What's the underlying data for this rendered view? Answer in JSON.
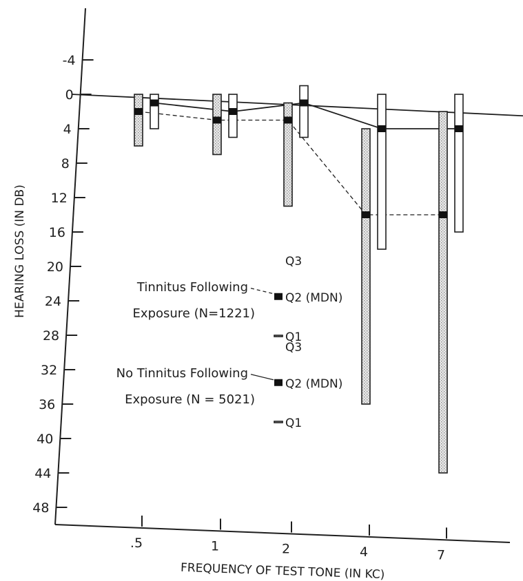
{
  "chart_data": {
    "type": "box",
    "title": "",
    "xlabel": "FREQUENCY OF TEST TONE (IN KC)",
    "ylabel": "HEARING LOSS (IN DB)",
    "y_ticks": [
      "-4",
      "0",
      "4",
      "8",
      "12",
      "16",
      "20",
      "24",
      "28",
      "32",
      "36",
      "40",
      "44",
      "48"
    ],
    "x_ticks": [
      ".5",
      "1",
      "2",
      "4",
      "7"
    ],
    "ylim": [
      -4,
      50
    ],
    "y_inverted": true,
    "grid": false,
    "series": [
      {
        "name": "Tinnitus Following Exposure (N=1221)",
        "style": "shaded",
        "points": [
          {
            "x": ".5",
            "q1": 0,
            "median": 2,
            "q3": 6
          },
          {
            "x": "1",
            "q1": 0,
            "median": 3,
            "q3": 7
          },
          {
            "x": "2",
            "q1": 1,
            "median": 3,
            "q3": 13
          },
          {
            "x": "4",
            "q1": 4,
            "median": 14,
            "q3": 36
          },
          {
            "x": "7",
            "q1": 2,
            "median": 14,
            "q3": 44
          }
        ]
      },
      {
        "name": "No Tinnitus Following Exposure (N=5021)",
        "style": "open",
        "points": [
          {
            "x": ".5",
            "q1": 0,
            "median": 1,
            "q3": 4
          },
          {
            "x": "1",
            "q1": 0,
            "median": 2,
            "q3": 5
          },
          {
            "x": "2",
            "q1": -1,
            "median": 1,
            "q3": 5
          },
          {
            "x": "4",
            "q1": 0,
            "median": 4,
            "q3": 18
          },
          {
            "x": "7",
            "q1": 0,
            "median": 4,
            "q3": 16
          }
        ]
      }
    ],
    "reference_line": {
      "from": 0,
      "to": 2.5
    },
    "legend": {
      "entries": [
        {
          "line1": "Tinnitus Following",
          "line2": "Exposure (N=1221)",
          "style": "shaded"
        },
        {
          "line1": "No Tinnitus Following",
          "line2": "Exposure (N = 5021)",
          "style": "open"
        }
      ],
      "q3_label": "Q3",
      "median_label": "Q2 (MDN)",
      "q1_label": "Q1",
      "placement": "center-left"
    }
  }
}
